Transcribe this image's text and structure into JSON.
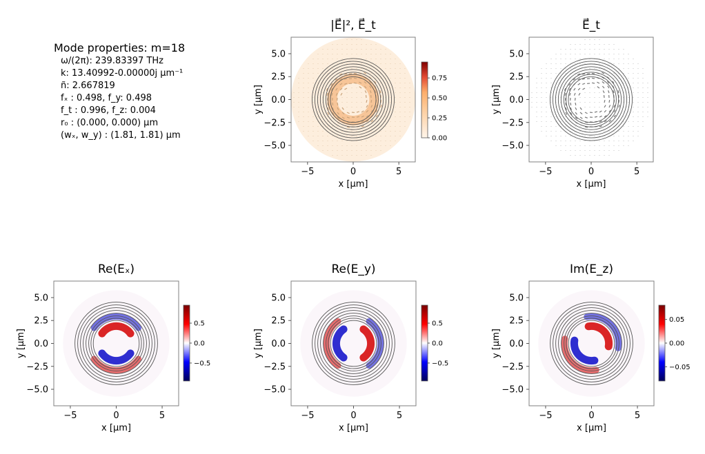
{
  "mode_properties": {
    "title": "Mode properties: m=18",
    "lines": [
      "ω/(2π): 239.83397 THz",
      "k: 13.40992-0.00000j μm⁻¹",
      "ñ: 2.667819",
      "fₓ : 0.498, f_y: 0.498",
      "f_t : 0.996, f_z: 0.004",
      "r₀ : (0.000, 0.000) μm",
      "(wₓ, w_y) : (1.81, 1.81) μm"
    ]
  },
  "colors": {
    "axes_frame": "#7f7f7f",
    "contour": "#555555",
    "arrow": "#808080",
    "intensity_low": "#fff5eb",
    "intensity_mid": "#fdae6b",
    "intensity_high": "#7f0000",
    "diverging_neg": "#00005a",
    "diverging_pos": "#7a0000"
  },
  "chart_data": [
    {
      "type": "heatmap",
      "title": "|E⃗|², E⃗_t",
      "xlabel": "x [μm]",
      "ylabel": "y [μm]",
      "xlim": [
        -6.8,
        6.8
      ],
      "ylim": [
        -6.8,
        6.8
      ],
      "xticks": [
        "−5",
        "0",
        "5"
      ],
      "yticks": [
        "5.0",
        "2.5",
        "0.0",
        "−2.5",
        "−5.0"
      ],
      "colorbar": {
        "map": "orange",
        "vmin": 0,
        "vmax": 0.95,
        "ticks": [
          "0.00",
          "0.25",
          "0.50",
          "0.75"
        ],
        "tick_values": [
          0,
          0.25,
          0.5,
          0.75
        ]
      },
      "field": "intensity",
      "vector_overlay": true,
      "contour_radii": [
        2.5,
        2.75,
        3.0,
        3.3,
        3.6,
        3.9,
        4.2,
        4.5
      ],
      "ring_radius": 2.3,
      "background_radius": 6.8
    },
    {
      "type": "heatmap",
      "title": "E⃗_t",
      "xlabel": "x [μm]",
      "ylabel": "y [μm]",
      "xlim": [
        -6.8,
        6.8
      ],
      "ylim": [
        -6.8,
        6.8
      ],
      "xticks": [
        "−5",
        "0",
        "5"
      ],
      "yticks": [
        "5.0",
        "2.5",
        "0.0",
        "−2.5",
        "−5.0"
      ],
      "field": "vectors",
      "vector_overlay": true,
      "contour_radii": [
        2.5,
        2.75,
        3.0,
        3.3,
        3.6,
        3.9,
        4.2,
        4.5
      ],
      "ring_radius": 2.3,
      "background_radius": 6.8
    },
    {
      "type": "heatmap",
      "title": "Re(Eₓ)",
      "xlabel": "x [μm]",
      "ylabel": "y [μm]",
      "xlim": [
        -6.8,
        6.8
      ],
      "ylim": [
        -6.8,
        6.8
      ],
      "xticks": [
        "−5",
        "0",
        "5"
      ],
      "yticks": [
        "5.0",
        "2.5",
        "0.0",
        "−2.5",
        "−5.0"
      ],
      "colorbar": {
        "map": "seismic",
        "vmin": -0.95,
        "vmax": 0.95,
        "ticks": [
          "0.5",
          "0.0",
          "−0.5"
        ],
        "tick_values": [
          0.5,
          0,
          -0.5
        ]
      },
      "field": "ex",
      "contour_radii": [
        2.5,
        2.75,
        3.0,
        3.3,
        3.6,
        3.9,
        4.2,
        4.5
      ],
      "ring_radius": 2.3,
      "background_radius": 6.8
    },
    {
      "type": "heatmap",
      "title": "Re(E_y)",
      "xlabel": "x [μm]",
      "ylabel": "y [μm]",
      "xlim": [
        -6.8,
        6.8
      ],
      "ylim": [
        -6.8,
        6.8
      ],
      "xticks": [
        "−5",
        "0",
        "5"
      ],
      "yticks": [
        "5.0",
        "2.5",
        "0.0",
        "−2.5",
        "−5.0"
      ],
      "colorbar": {
        "map": "seismic",
        "vmin": -0.95,
        "vmax": 0.95,
        "ticks": [
          "0.5",
          "0.0",
          "−0.5"
        ],
        "tick_values": [
          0.5,
          0,
          -0.5
        ]
      },
      "field": "ey",
      "contour_radii": [
        2.5,
        2.75,
        3.0,
        3.3,
        3.6,
        3.9,
        4.2,
        4.5
      ],
      "ring_radius": 2.3,
      "background_radius": 6.8
    },
    {
      "type": "heatmap",
      "title": "Im(E_z)",
      "xlabel": "x [μm]",
      "ylabel": "y [μm]",
      "xlim": [
        -6.8,
        6.8
      ],
      "ylim": [
        -6.8,
        6.8
      ],
      "xticks": [
        "−5",
        "0",
        "5"
      ],
      "yticks": [
        "5.0",
        "2.5",
        "0.0",
        "−2.5",
        "−5.0"
      ],
      "colorbar": {
        "map": "seismic",
        "vmin": -0.08,
        "vmax": 0.08,
        "ticks": [
          "0.05",
          "0.00",
          "−0.05"
        ],
        "tick_values": [
          0.05,
          0,
          -0.05
        ]
      },
      "field": "ez",
      "contour_radii": [
        2.5,
        2.75,
        3.0,
        3.3,
        3.6,
        3.9,
        4.2,
        4.5
      ],
      "ring_radius": 2.3,
      "background_radius": 6.8
    }
  ]
}
